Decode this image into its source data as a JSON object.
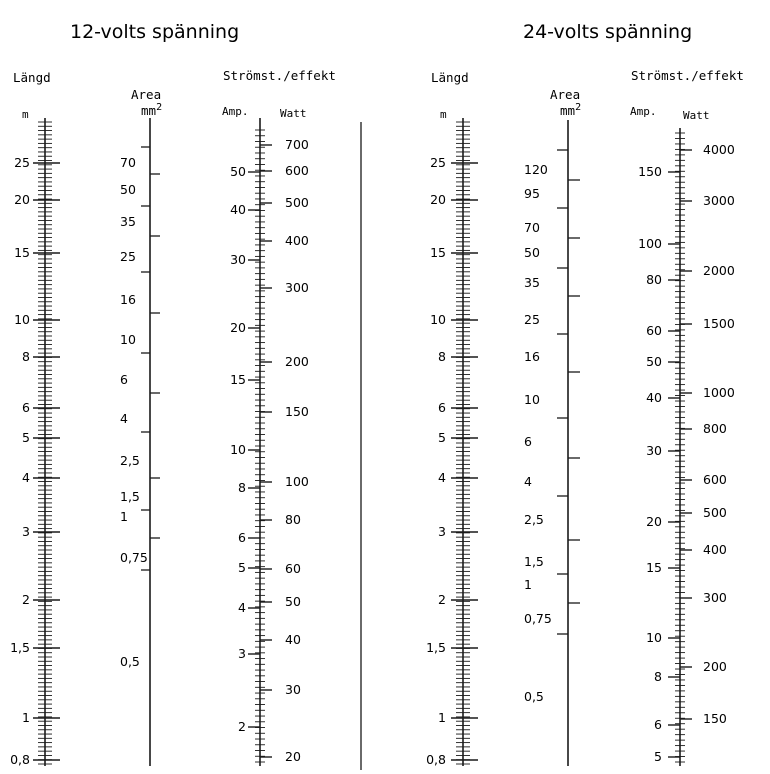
{
  "left_panel": {
    "title": "12-volts spänning",
    "length_header": "Längd",
    "length_unit": "m",
    "length_labels": [
      "25",
      "20",
      "15",
      "10",
      "8",
      "6",
      "5",
      "4",
      "3",
      "2",
      "1,5",
      "1",
      "0,8"
    ],
    "area_header": "Area",
    "area_unit": "mm2",
    "area_labels": [
      "70",
      "50",
      "35",
      "25",
      "16",
      "10",
      "6",
      "4",
      "2,5",
      "1,5",
      "1",
      "0,75",
      "0,5"
    ],
    "current_header": "Strömst./effekt",
    "amp_unit": "Amp.",
    "watt_unit": "Watt",
    "amp_labels": [
      "50",
      "40",
      "30",
      "20",
      "15",
      "10",
      "8",
      "6",
      "5",
      "4",
      "3",
      "2"
    ],
    "watt_labels": [
      "700",
      "600",
      "500",
      "400",
      "300",
      "200",
      "150",
      "100",
      "80",
      "60",
      "50",
      "40",
      "30",
      "20"
    ]
  },
  "right_panel": {
    "title": "24-volts spänning",
    "length_header": "Längd",
    "length_unit": "m",
    "length_labels": [
      "25",
      "20",
      "15",
      "10",
      "8",
      "6",
      "5",
      "4",
      "3",
      "2",
      "1,5",
      "1",
      "0,8"
    ],
    "area_header": "Area",
    "area_unit": "mm2",
    "area_labels": [
      "120",
      "95",
      "70",
      "50",
      "35",
      "25",
      "16",
      "10",
      "6",
      "4",
      "2,5",
      "1,5",
      "1",
      "0,75",
      "0,5"
    ],
    "current_header": "Strömst./effekt",
    "amp_unit": "Amp.",
    "watt_unit": "Watt",
    "amp_labels": [
      "150",
      "100",
      "80",
      "60",
      "50",
      "40",
      "30",
      "20",
      "15",
      "10",
      "8",
      "6",
      "5"
    ],
    "watt_labels": [
      "4000",
      "3000",
      "2000",
      "1500",
      "1000",
      "800",
      "600",
      "500",
      "400",
      "300",
      "200",
      "150"
    ]
  },
  "colors": {
    "ink": "#1a1a1a",
    "background": "#ffffff"
  }
}
